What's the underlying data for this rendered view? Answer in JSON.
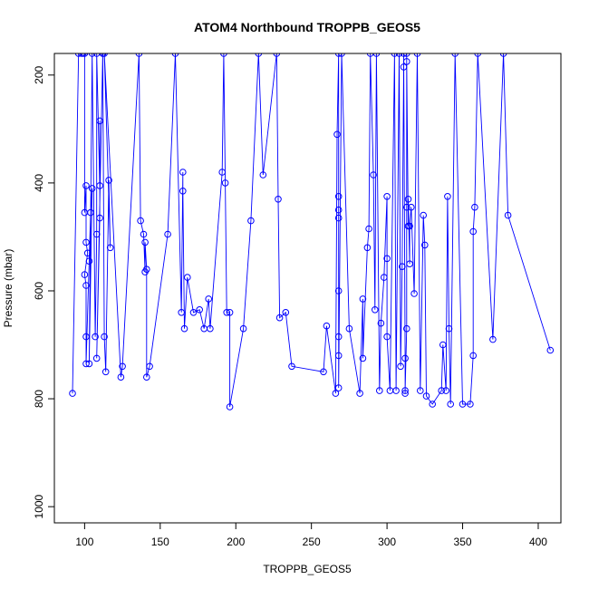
{
  "chart_data": {
    "type": "line",
    "title": "ATOM4 Northbound TROPPB_GEOS5",
    "xlabel": "TROPPB_GEOS5",
    "ylabel": "Pressure (mbar)",
    "xlim": [
      80,
      415
    ],
    "ylim": [
      1030,
      160
    ],
    "y_reversed": true,
    "x_ticks": [
      100,
      150,
      200,
      250,
      300,
      350,
      400
    ],
    "y_ticks": [
      200,
      400,
      600,
      800,
      1000
    ],
    "grid": false,
    "legend": "none",
    "line_color": "#0000ff",
    "marker": "open-circle",
    "points": [
      [
        92,
        790
      ],
      [
        96,
        160
      ],
      [
        98,
        160
      ],
      [
        99,
        160
      ],
      [
        100,
        160
      ],
      [
        100,
        455
      ],
      [
        101,
        405
      ],
      [
        101,
        510
      ],
      [
        102,
        530
      ],
      [
        100,
        570
      ],
      [
        101,
        590
      ],
      [
        101,
        685
      ],
      [
        101,
        735
      ],
      [
        103,
        545
      ],
      [
        104,
        455
      ],
      [
        105,
        410
      ],
      [
        103,
        735
      ],
      [
        105,
        160
      ],
      [
        107,
        685
      ],
      [
        108,
        495
      ],
      [
        108,
        160
      ],
      [
        110,
        405
      ],
      [
        110,
        285
      ],
      [
        110,
        465
      ],
      [
        108,
        725
      ],
      [
        112,
        160
      ],
      [
        112,
        160
      ],
      [
        113,
        685
      ],
      [
        114,
        750
      ],
      [
        116,
        395
      ],
      [
        117,
        520
      ],
      [
        113,
        160
      ],
      [
        124,
        760
      ],
      [
        125,
        740
      ],
      [
        136,
        160
      ],
      [
        137,
        470
      ],
      [
        139,
        495
      ],
      [
        140,
        565
      ],
      [
        140,
        510
      ],
      [
        141,
        560
      ],
      [
        141,
        760
      ],
      [
        143,
        740
      ],
      [
        155,
        495
      ],
      [
        160,
        160
      ],
      [
        164,
        640
      ],
      [
        165,
        380
      ],
      [
        165,
        415
      ],
      [
        166,
        670
      ],
      [
        168,
        575
      ],
      [
        172,
        640
      ],
      [
        176,
        635
      ],
      [
        179,
        670
      ],
      [
        182,
        615
      ],
      [
        183,
        670
      ],
      [
        191,
        380
      ],
      [
        192,
        160
      ],
      [
        193,
        400
      ],
      [
        194,
        640
      ],
      [
        196,
        640
      ],
      [
        196,
        815
      ],
      [
        205,
        670
      ],
      [
        210,
        470
      ],
      [
        215,
        160
      ],
      [
        218,
        385
      ],
      [
        227,
        160
      ],
      [
        228,
        430
      ],
      [
        229,
        650
      ],
      [
        233,
        640
      ],
      [
        237,
        740
      ],
      [
        258,
        750
      ],
      [
        260,
        665
      ],
      [
        266,
        790
      ],
      [
        267,
        310
      ],
      [
        268,
        160
      ],
      [
        268,
        425
      ],
      [
        268,
        600
      ],
      [
        268,
        450
      ],
      [
        268,
        465
      ],
      [
        268,
        685
      ],
      [
        268,
        720
      ],
      [
        268,
        780
      ],
      [
        270,
        160
      ],
      [
        275,
        670
      ],
      [
        282,
        790
      ],
      [
        284,
        615
      ],
      [
        284,
        725
      ],
      [
        287,
        520
      ],
      [
        288,
        485
      ],
      [
        289,
        160
      ],
      [
        291,
        385
      ],
      [
        292,
        635
      ],
      [
        293,
        160
      ],
      [
        295,
        785
      ],
      [
        296,
        660
      ],
      [
        298,
        575
      ],
      [
        300,
        425
      ],
      [
        300,
        540
      ],
      [
        300,
        685
      ],
      [
        302,
        785
      ],
      [
        305,
        160
      ],
      [
        306,
        785
      ],
      [
        308,
        160
      ],
      [
        309,
        740
      ],
      [
        310,
        555
      ],
      [
        311,
        185
      ],
      [
        311,
        160
      ],
      [
        312,
        725
      ],
      [
        312,
        790
      ],
      [
        312,
        785
      ],
      [
        313,
        670
      ],
      [
        313,
        445
      ],
      [
        313,
        160
      ],
      [
        313,
        175
      ],
      [
        314,
        480
      ],
      [
        314,
        430
      ],
      [
        315,
        550
      ],
      [
        315,
        480
      ],
      [
        316,
        445
      ],
      [
        318,
        605
      ],
      [
        320,
        160
      ],
      [
        322,
        785
      ],
      [
        324,
        460
      ],
      [
        325,
        515
      ],
      [
        326,
        795
      ],
      [
        330,
        810
      ],
      [
        336,
        785
      ],
      [
        337,
        700
      ],
      [
        339,
        785
      ],
      [
        340,
        425
      ],
      [
        341,
        670
      ],
      [
        342,
        810
      ],
      [
        345,
        160
      ],
      [
        350,
        810
      ],
      [
        355,
        810
      ],
      [
        357,
        720
      ],
      [
        357,
        490
      ],
      [
        358,
        445
      ],
      [
        360,
        160
      ],
      [
        370,
        690
      ],
      [
        377,
        160
      ],
      [
        380,
        460
      ],
      [
        408,
        710
      ]
    ]
  }
}
